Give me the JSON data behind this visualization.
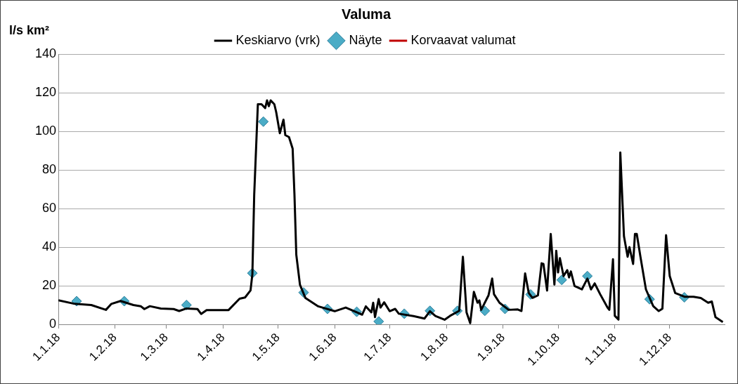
{
  "chart_data": {
    "type": "line",
    "title": "Valuma",
    "ylabel": "l/s km²",
    "xlim": [
      "2018-01-01",
      "2018-12-31"
    ],
    "xticks": [
      {
        "value": "2018-01-01",
        "label": "1.1.18"
      },
      {
        "value": "2018-02-01",
        "label": "1.2.18"
      },
      {
        "value": "2018-03-01",
        "label": "1.3.18"
      },
      {
        "value": "2018-04-01",
        "label": "1.4.18"
      },
      {
        "value": "2018-05-01",
        "label": "1.5.18"
      },
      {
        "value": "2018-06-01",
        "label": "1.6.18"
      },
      {
        "value": "2018-07-01",
        "label": "1.7.18"
      },
      {
        "value": "2018-08-01",
        "label": "1.8.18"
      },
      {
        "value": "2018-09-01",
        "label": "1.9.18"
      },
      {
        "value": "2018-10-01",
        "label": "1.10.18"
      },
      {
        "value": "2018-11-01",
        "label": "1.11.18"
      },
      {
        "value": "2018-12-01",
        "label": "1.12.18"
      }
    ],
    "ylim": [
      0,
      140
    ],
    "yticks": [
      0,
      20,
      40,
      60,
      80,
      100,
      120,
      140
    ],
    "grid": "y",
    "legend": "top",
    "series": [
      {
        "name": "Keskiarvo (vrk)",
        "color": "#000000",
        "marker": "none",
        "x": [
          "2018-01-01",
          "2018-01-10",
          "2018-01-19",
          "2018-01-27",
          "2018-01-30",
          "2018-02-04",
          "2018-02-11",
          "2018-02-15",
          "2018-02-17",
          "2018-02-20",
          "2018-02-26",
          "2018-03-05",
          "2018-03-08",
          "2018-03-12",
          "2018-03-18",
          "2018-03-20",
          "2018-03-23",
          "2018-04-04",
          "2018-04-10",
          "2018-04-13",
          "2018-04-16",
          "2018-04-17",
          "2018-04-18",
          "2018-04-20",
          "2018-04-22",
          "2018-04-24",
          "2018-04-25",
          "2018-04-26",
          "2018-04-27",
          "2018-04-29",
          "2018-04-30",
          "2018-05-02",
          "2018-05-04",
          "2018-05-05",
          "2018-05-07",
          "2018-05-09",
          "2018-05-10",
          "2018-05-11",
          "2018-05-13",
          "2018-05-16",
          "2018-05-23",
          "2018-06-01",
          "2018-06-07",
          "2018-06-16",
          "2018-06-18",
          "2018-06-21",
          "2018-06-22",
          "2018-06-23",
          "2018-06-25",
          "2018-06-26",
          "2018-06-28",
          "2018-07-01",
          "2018-07-04",
          "2018-07-06",
          "2018-07-14",
          "2018-07-20",
          "2018-07-23",
          "2018-07-26",
          "2018-07-31",
          "2018-08-03",
          "2018-08-08",
          "2018-08-10",
          "2018-08-12",
          "2018-08-14",
          "2018-08-16",
          "2018-08-18",
          "2018-08-19",
          "2018-08-20",
          "2018-08-24",
          "2018-08-26",
          "2018-08-27",
          "2018-08-30",
          "2018-09-04",
          "2018-09-09",
          "2018-09-11",
          "2018-09-13",
          "2018-09-15",
          "2018-09-17",
          "2018-09-20",
          "2018-09-22",
          "2018-09-23",
          "2018-09-25",
          "2018-09-27",
          "2018-09-29",
          "2018-09-30",
          "2018-10-01",
          "2018-10-02",
          "2018-10-04",
          "2018-10-06",
          "2018-10-07",
          "2018-10-08",
          "2018-10-10",
          "2018-10-14",
          "2018-10-17",
          "2018-10-19",
          "2018-10-21",
          "2018-10-24",
          "2018-10-28",
          "2018-10-29",
          "2018-10-31",
          "2018-11-01",
          "2018-11-03",
          "2018-11-04",
          "2018-11-06",
          "2018-11-08",
          "2018-11-09",
          "2018-11-11",
          "2018-11-12",
          "2018-11-13",
          "2018-11-15",
          "2018-11-18",
          "2018-11-22",
          "2018-11-25",
          "2018-11-27",
          "2018-11-29",
          "2018-12-01",
          "2018-12-04",
          "2018-12-09",
          "2018-12-14",
          "2018-12-18",
          "2018-12-22",
          "2018-12-24",
          "2018-12-26",
          "2018-12-30"
        ],
        "values": [
          12.5,
          10.6,
          10,
          7.5,
          10.6,
          12.1,
          10,
          9.4,
          7.9,
          9.4,
          8.2,
          7.9,
          6.9,
          8.2,
          7.9,
          5.4,
          7.4,
          7.4,
          13.3,
          13.9,
          17.6,
          26,
          67,
          114,
          114,
          112,
          116,
          113,
          116,
          114,
          110,
          99,
          106,
          98,
          97,
          91,
          67,
          36,
          20.5,
          13.6,
          9.3,
          6.8,
          8.7,
          5,
          9.3,
          6.2,
          11.2,
          3.7,
          13.1,
          8.7,
          11.4,
          6.8,
          8,
          5.5,
          4.3,
          3,
          6.8,
          4.3,
          2.4,
          4.4,
          7,
          35,
          6.2,
          0.6,
          16.8,
          11.2,
          12.4,
          7.5,
          15,
          23.7,
          15.6,
          11.2,
          7.5,
          7.7,
          6.9,
          26.4,
          16.2,
          13.7,
          15,
          31.6,
          31.3,
          17.5,
          46.8,
          20.6,
          38.1,
          26.9,
          34.3,
          25,
          28.1,
          24.3,
          27.4,
          19.9,
          18.1,
          23.7,
          18.1,
          21.2,
          15.6,
          8.7,
          7.5,
          33.7,
          4.4,
          2.5,
          89,
          45.6,
          35,
          40,
          31.3,
          46.8,
          46.8,
          35,
          18.1,
          9.4,
          6.9,
          8.1,
          46.2,
          25,
          16.2,
          14.3,
          14.3,
          13.6,
          11.2,
          11.8,
          3.7,
          1.2
        ]
      },
      {
        "name": "Näyte",
        "type": "scatter",
        "color": "#4bacc6",
        "marker": "diamond",
        "x": [
          "2018-01-11",
          "2018-02-06",
          "2018-03-12",
          "2018-04-17",
          "2018-04-23",
          "2018-05-15",
          "2018-05-28",
          "2018-06-13",
          "2018-06-25",
          "2018-07-09",
          "2018-07-23",
          "2018-08-07",
          "2018-08-22",
          "2018-09-02",
          "2018-09-16",
          "2018-10-03",
          "2018-10-17",
          "2018-11-20",
          "2018-12-09"
        ],
        "values": [
          12,
          12,
          10,
          26.5,
          105,
          16.5,
          8,
          6.5,
          1.5,
          5.5,
          7,
          7,
          7,
          8,
          15.5,
          23,
          25,
          13,
          14
        ]
      },
      {
        "name": "Korvaavat valumat",
        "color": "#c00000",
        "marker": "none"
      }
    ]
  }
}
